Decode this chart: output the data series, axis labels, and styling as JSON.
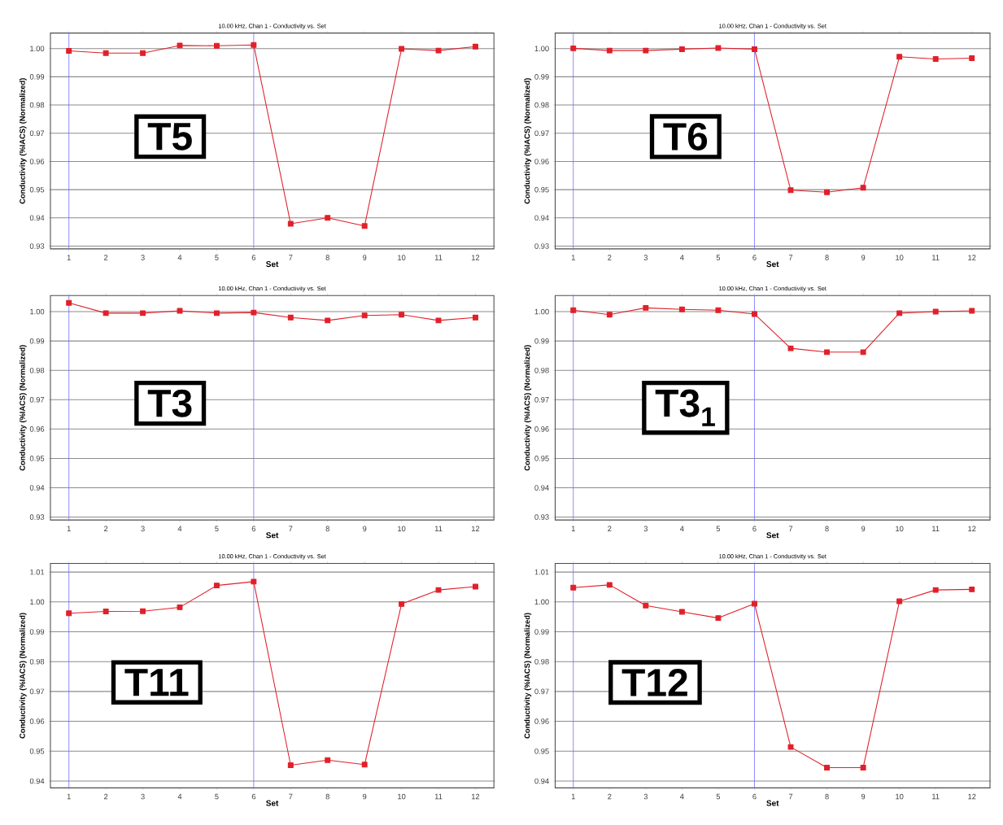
{
  "chart_data": [
    {
      "type": "line",
      "title": "10.00 kHz, Chan 1 - Conductivity vs. Set",
      "xlabel": "Set",
      "ylabel": "Conductivity (%IACS) (Normalized)",
      "annotations": [
        "T5"
      ],
      "x": [
        1,
        2,
        3,
        4,
        5,
        6,
        7,
        8,
        9,
        10,
        11,
        12
      ],
      "xlim": [
        0.5,
        12.5
      ],
      "xticks": [
        1,
        2,
        3,
        4,
        5,
        6,
        7,
        8,
        9,
        10,
        11,
        12
      ],
      "ylim": [
        0.929,
        1.0055
      ],
      "yticks": [
        {
          "value": 0.93,
          "label": "0.93"
        },
        {
          "value": 0.94,
          "label": "0.94"
        },
        {
          "value": 0.95,
          "label": "0.95"
        },
        {
          "value": 0.96,
          "label": "0.96"
        },
        {
          "value": 0.97,
          "label": "0.97"
        },
        {
          "value": 0.98,
          "label": "0.98"
        },
        {
          "value": 0.99,
          "label": "0.99"
        },
        {
          "value": 1.0,
          "label": "1.00"
        }
      ],
      "grid": "y",
      "marker": "square",
      "line_style": "solid",
      "ref_lines": [
        {
          "axis": "x",
          "value": 1,
          "color": "#7070ff"
        },
        {
          "axis": "x",
          "value": 6,
          "color": "#7070ff"
        }
      ],
      "series": [
        {
          "color": "#e0202a",
          "values": [
            0.9992,
            0.9984,
            0.9984,
            1.0011,
            1.001,
            1.0013,
            0.9379,
            0.94,
            0.9371,
            0.9999,
            0.9993,
            1.0007
          ]
        }
      ]
    },
    {
      "type": "line",
      "title": "10.00 kHz, Chan 1 - Conductivity vs. Set",
      "xlabel": "Set",
      "ylabel": "Conductivity (%IACS) (Normalized)",
      "annotations": [
        "T6"
      ],
      "x": [
        1,
        2,
        3,
        4,
        5,
        6,
        7,
        8,
        9,
        10,
        11,
        12
      ],
      "xlim": [
        0.5,
        12.5
      ],
      "xticks": [
        1,
        2,
        3,
        4,
        5,
        6,
        7,
        8,
        9,
        10,
        11,
        12
      ],
      "ylim": [
        0.929,
        1.0055
      ],
      "yticks": [
        {
          "value": 0.93,
          "label": "0.93"
        },
        {
          "value": 0.94,
          "label": "0.94"
        },
        {
          "value": 0.95,
          "label": "0.95"
        },
        {
          "value": 0.96,
          "label": "0.96"
        },
        {
          "value": 0.97,
          "label": "0.97"
        },
        {
          "value": 0.98,
          "label": "0.98"
        },
        {
          "value": 0.99,
          "label": "0.99"
        },
        {
          "value": 1.0,
          "label": "1.00"
        }
      ],
      "grid": "y",
      "marker": "square",
      "line_style": "solid",
      "ref_lines": [
        {
          "axis": "x",
          "value": 1,
          "color": "#7070ff"
        },
        {
          "axis": "x",
          "value": 6,
          "color": "#7070ff"
        }
      ],
      "series": [
        {
          "color": "#e0202a",
          "values": [
            1.0001,
            0.9993,
            0.9993,
            0.9998,
            1.0002,
            0.9998,
            0.9498,
            0.9491,
            0.9507,
            0.9971,
            0.9963,
            0.9966
          ]
        }
      ]
    },
    {
      "type": "line",
      "title": "10.00 kHz, Chan 1 - Conductivity vs. Set",
      "xlabel": "Set",
      "ylabel": "Conductivity (%IACS) (Normalized)",
      "annotations": [
        "T3"
      ],
      "x": [
        1,
        2,
        3,
        4,
        5,
        6,
        7,
        8,
        9,
        10,
        11,
        12
      ],
      "xlim": [
        0.5,
        12.5
      ],
      "xticks": [
        1,
        2,
        3,
        4,
        5,
        6,
        7,
        8,
        9,
        10,
        11,
        12
      ],
      "ylim": [
        0.929,
        1.0055
      ],
      "yticks": [
        {
          "value": 0.93,
          "label": "0.93"
        },
        {
          "value": 0.94,
          "label": "0.94"
        },
        {
          "value": 0.95,
          "label": "0.95"
        },
        {
          "value": 0.96,
          "label": "0.96"
        },
        {
          "value": 0.97,
          "label": "0.97"
        },
        {
          "value": 0.98,
          "label": "0.98"
        },
        {
          "value": 0.99,
          "label": "0.99"
        },
        {
          "value": 1.0,
          "label": "1.00"
        }
      ],
      "grid": "y",
      "marker": "square",
      "line_style": "solid",
      "ref_lines": [
        {
          "axis": "x",
          "value": 1,
          "color": "#7070ff"
        },
        {
          "axis": "x",
          "value": 6,
          "color": "#7070ff"
        }
      ],
      "series": [
        {
          "color": "#e0202a",
          "values": [
            1.003,
            0.9995,
            0.9995,
            1.0003,
            0.9995,
            0.9997,
            0.998,
            0.997,
            0.9987,
            0.999,
            0.997,
            0.998
          ]
        }
      ]
    },
    {
      "type": "line",
      "title": "10.00 kHz, Chan 1 - Conductivity vs. Set",
      "xlabel": "Set",
      "ylabel": "Conductivity (%IACS) (Normalized)",
      "annotations": [
        "T3$_{1}$"
      ],
      "x": [
        1,
        2,
        3,
        4,
        5,
        6,
        7,
        8,
        9,
        10,
        11,
        12
      ],
      "xlim": [
        0.5,
        12.5
      ],
      "xticks": [
        1,
        2,
        3,
        4,
        5,
        6,
        7,
        8,
        9,
        10,
        11,
        12
      ],
      "ylim": [
        0.929,
        1.0055
      ],
      "yticks": [
        {
          "value": 0.93,
          "label": "0.93"
        },
        {
          "value": 0.94,
          "label": "0.94"
        },
        {
          "value": 0.95,
          "label": "0.95"
        },
        {
          "value": 0.96,
          "label": "0.96"
        },
        {
          "value": 0.97,
          "label": "0.97"
        },
        {
          "value": 0.98,
          "label": "0.98"
        },
        {
          "value": 0.99,
          "label": "0.99"
        },
        {
          "value": 1.0,
          "label": "1.00"
        }
      ],
      "grid": "y",
      "marker": "square",
      "line_style": "solid",
      "ref_lines": [
        {
          "axis": "x",
          "value": 1,
          "color": "#7070ff"
        },
        {
          "axis": "x",
          "value": 6,
          "color": "#7070ff"
        }
      ],
      "series": [
        {
          "color": "#e0202a",
          "values": [
            1.0005,
            0.999,
            1.0013,
            1.0008,
            1.0005,
            0.9992,
            0.9875,
            0.9862,
            0.9862,
            0.9995,
            1.0,
            1.0003
          ]
        }
      ]
    },
    {
      "type": "line",
      "title": "10.00 kHz, Chan 1 - Conductivity vs. Set",
      "xlabel": "Set",
      "ylabel": "Conductivity (%IACS) (Normalized)",
      "annotations": [
        "T11"
      ],
      "x": [
        1,
        2,
        3,
        4,
        5,
        6,
        7,
        8,
        9,
        10,
        11,
        12
      ],
      "xlim": [
        0.5,
        12.5
      ],
      "xticks": [
        1,
        2,
        3,
        4,
        5,
        6,
        7,
        8,
        9,
        10,
        11,
        12
      ],
      "ylim": [
        0.9377,
        1.0129
      ],
      "yticks": [
        {
          "value": 0.94,
          "label": "0.94"
        },
        {
          "value": 0.95,
          "label": "0.95"
        },
        {
          "value": 0.96,
          "label": "0.96"
        },
        {
          "value": 0.97,
          "label": "0.97"
        },
        {
          "value": 0.98,
          "label": "0.98"
        },
        {
          "value": 0.99,
          "label": "0.99"
        },
        {
          "value": 1.0,
          "label": "1.00"
        },
        {
          "value": 1.01,
          "label": "1.01"
        }
      ],
      "grid": "y",
      "marker": "square",
      "line_style": "solid",
      "ref_lines": [
        {
          "axis": "x",
          "value": 1,
          "color": "#7070ff"
        },
        {
          "axis": "x",
          "value": 6,
          "color": "#7070ff"
        }
      ],
      "series": [
        {
          "color": "#e0202a",
          "values": [
            0.9962,
            0.9968,
            0.9969,
            0.9982,
            1.0055,
            1.0068,
            0.9453,
            0.947,
            0.9455,
            0.9993,
            1.004,
            1.0051
          ]
        }
      ]
    },
    {
      "type": "line",
      "title": "10.00 kHz, Chan 1 - Conductivity vs. Set",
      "xlabel": "Set",
      "ylabel": "Conductivity (%IACS) (Normalized)",
      "annotations": [
        "T12"
      ],
      "x": [
        1,
        2,
        3,
        4,
        5,
        6,
        7,
        8,
        9,
        10,
        11,
        12
      ],
      "xlim": [
        0.5,
        12.5
      ],
      "xticks": [
        1,
        2,
        3,
        4,
        5,
        6,
        7,
        8,
        9,
        10,
        11,
        12
      ],
      "ylim": [
        0.9377,
        1.0129
      ],
      "yticks": [
        {
          "value": 0.94,
          "label": "0.94"
        },
        {
          "value": 0.95,
          "label": "0.95"
        },
        {
          "value": 0.96,
          "label": "0.96"
        },
        {
          "value": 0.97,
          "label": "0.97"
        },
        {
          "value": 0.98,
          "label": "0.98"
        },
        {
          "value": 0.99,
          "label": "0.99"
        },
        {
          "value": 1.0,
          "label": "1.00"
        },
        {
          "value": 1.01,
          "label": "1.01"
        }
      ],
      "grid": "y",
      "marker": "square",
      "line_style": "solid",
      "ref_lines": [
        {
          "axis": "x",
          "value": 1,
          "color": "#7070ff"
        },
        {
          "axis": "x",
          "value": 6,
          "color": "#7070ff"
        }
      ],
      "series": [
        {
          "color": "#e0202a",
          "values": [
            1.0048,
            1.0057,
            0.9988,
            0.9967,
            0.9946,
            0.9994,
            0.9514,
            0.9445,
            0.9445,
            1.0002,
            1.004,
            1.0042
          ]
        }
      ]
    }
  ]
}
